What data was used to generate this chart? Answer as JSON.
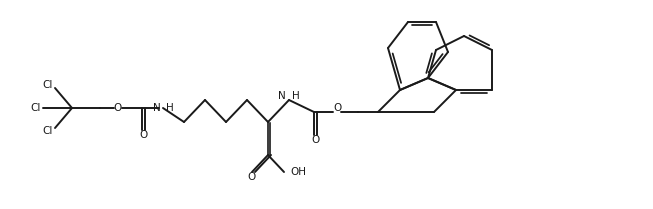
{
  "background_color": "#ffffff",
  "line_color": "#1a1a1a",
  "line_width": 1.4,
  "font_size": 7.5,
  "figsize": [
    6.53,
    2.09
  ],
  "dpi": 100,
  "xlim": [
    0,
    653
  ],
  "ylim": [
    0,
    209
  ]
}
